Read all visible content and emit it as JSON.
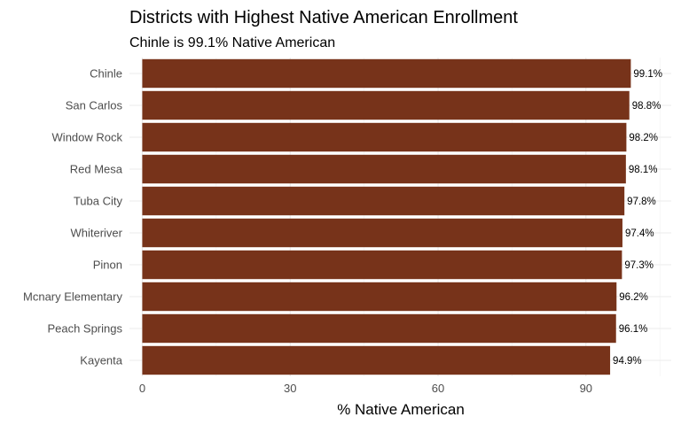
{
  "chart_data": {
    "type": "bar",
    "orientation": "horizontal",
    "title": "Districts with Highest Native American Enrollment",
    "subtitle": "Chinle is 99.1% Native American",
    "xlabel": "% Native American",
    "ylabel": "",
    "categories": [
      "Chinle",
      "San Carlos",
      "Window Rock",
      "Red Mesa",
      "Tuba City",
      "Whiteriver",
      "Pinon",
      "Mcnary Elementary",
      "Peach Springs",
      "Kayenta"
    ],
    "values": [
      99.1,
      98.8,
      98.2,
      98.1,
      97.8,
      97.4,
      97.3,
      96.2,
      96.1,
      94.9
    ],
    "value_labels": [
      "99.1%",
      "98.8%",
      "98.2%",
      "98.1%",
      "97.8%",
      "97.4%",
      "97.3%",
      "96.2%",
      "96.1%",
      "94.9%"
    ],
    "xlim": [
      -2.6,
      107.3
    ],
    "xticks": [
      0,
      30,
      60,
      90
    ],
    "xtick_labels": [
      "0",
      "30",
      "60",
      "90"
    ],
    "grid": true,
    "legend": "none",
    "bar_color": "#77331a"
  }
}
